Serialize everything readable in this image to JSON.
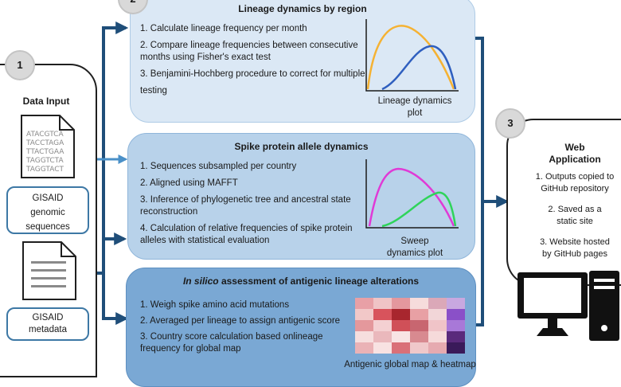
{
  "badges": {
    "one": "1",
    "two": "2",
    "three": "3"
  },
  "data_input": {
    "title": "Data Input",
    "sequence_lines": [
      "ATACGTCA",
      "TACCTAGA",
      "TTACTGAA",
      "TAGGTCTA",
      "TAGGTACT"
    ],
    "gisaid_genomic": [
      "GISAID",
      "genomic",
      "sequences"
    ],
    "gisaid_metadata": [
      "GISAID",
      "metadata"
    ]
  },
  "lineage": {
    "title": "Lineage dynamics by region",
    "steps": [
      "1. Calculate lineage frequency per month",
      "2. Compare lineage frequencies between consecutive",
      "months using Fisher's exact test",
      "3. Benjamini-Hochberg procedure to correct for multiple",
      "testing"
    ],
    "plot_caption": [
      "Lineage dynamics",
      "plot"
    ]
  },
  "spike": {
    "title": "Spike protein allele dynamics",
    "steps": [
      "1. Sequences subsampled per country",
      "2. Aligned using MAFFT",
      "3. Inference of phylogenetic tree and ancestral state",
      "reconstruction",
      "4. Calculation of relative frequencies of spike protein",
      "alleles with statistical evaluation"
    ],
    "plot_caption": [
      "Sweep",
      "dynamics plot"
    ]
  },
  "antigenic": {
    "title_italic": "In silico",
    "title_rest": " assessment of antigenic lineage alterations",
    "steps": [
      "1. Weigh spike amino acid mutations",
      "2. Averaged per lineage to assign antigenic score",
      "3. Country score calculation based onlineage",
      "frequency for global map"
    ],
    "plot_caption": "Antigenic global map & heatmap",
    "heatmap_colors": [
      [
        "#e8a0a6",
        "#f0c4c6",
        "#e4989e",
        "#f6dcdc",
        "#dba8b8",
        "#c8a8e0"
      ],
      [
        "#f2c8c8",
        "#d8535c",
        "#a8262e",
        "#e8a0a4",
        "#f2d6d8",
        "#8a50c8"
      ],
      [
        "#e4989c",
        "#f4d0d2",
        "#d05058",
        "#c86670",
        "#f0c4c8",
        "#a878d8"
      ],
      [
        "#f6dede",
        "#eab8bc",
        "#f8e4e4",
        "#d88a90",
        "#f6dada",
        "#5a2a7c"
      ],
      [
        "#eab2b6",
        "#f8e2e2",
        "#da7078",
        "#f0c8ca",
        "#e6aab0",
        "#3a1a5a"
      ]
    ]
  },
  "web_app": {
    "title": [
      "Web",
      "Application"
    ],
    "steps": [
      [
        "1. Outputs copied to",
        "GitHub repository"
      ],
      [
        "2. Saved as a",
        "static site"
      ],
      [
        "3. Website hosted",
        "by GitHub pages"
      ]
    ]
  },
  "colors": {
    "arrow": "#1f4e79",
    "light_arrow": "#4a90c8",
    "panel1": "#dbe8f5",
    "panel2": "#b8d2ea",
    "panel3": "#7aa8d4",
    "orange": "#f5b233",
    "blue_curve": "#2f5fbf",
    "magenta": "#e03ad6",
    "green": "#2fd45a"
  }
}
